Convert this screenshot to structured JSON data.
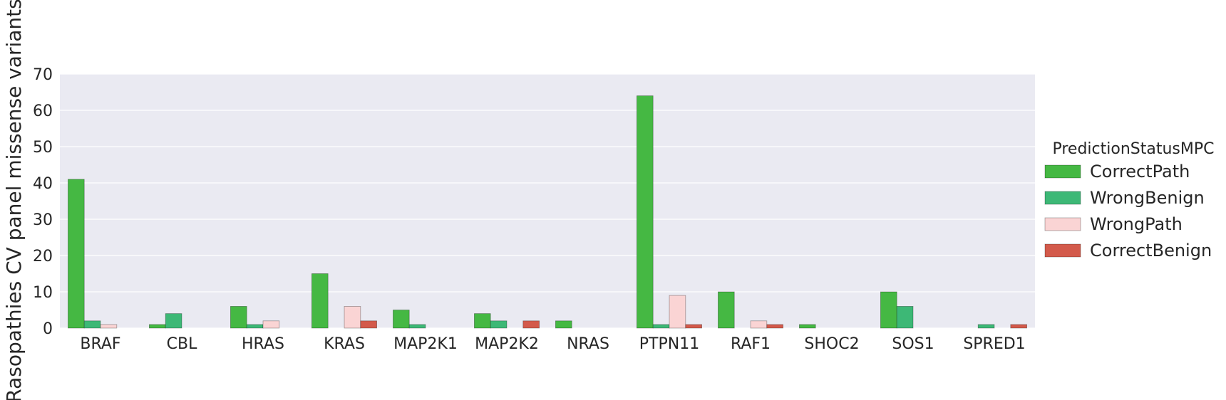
{
  "chart_data": {
    "type": "bar",
    "title": "",
    "xlabel": "",
    "ylabel": "Rasopathies CV panel missense variants",
    "ylim": [
      0,
      70
    ],
    "yticks": [
      0,
      10,
      20,
      30,
      40,
      50,
      60,
      70
    ],
    "grid": true,
    "legend_title": "PredictionStatusMPC",
    "legend_position": "right",
    "categories": [
      "BRAF",
      "CBL",
      "HRAS",
      "KRAS",
      "MAP2K1",
      "MAP2K2",
      "NRAS",
      "PTPN11",
      "RAF1",
      "SHOC2",
      "SOS1",
      "SPRED1"
    ],
    "series": [
      {
        "name": "CorrectPath",
        "color": "#45b843",
        "values": [
          41,
          1,
          6,
          15,
          5,
          4,
          2,
          64,
          10,
          1,
          10,
          0
        ]
      },
      {
        "name": "WrongBenign",
        "color": "#3db876",
        "values": [
          2,
          4,
          1,
          0,
          1,
          2,
          0,
          1,
          0,
          0,
          6,
          1
        ]
      },
      {
        "name": "WrongPath",
        "color": "#fad4d4",
        "values": [
          1,
          0,
          2,
          6,
          0,
          0,
          0,
          9,
          2,
          0,
          0,
          0
        ]
      },
      {
        "name": "CorrectBenign",
        "color": "#d35a4b",
        "values": [
          0,
          0,
          0,
          2,
          0,
          2,
          0,
          1,
          1,
          0,
          0,
          1
        ]
      }
    ]
  }
}
